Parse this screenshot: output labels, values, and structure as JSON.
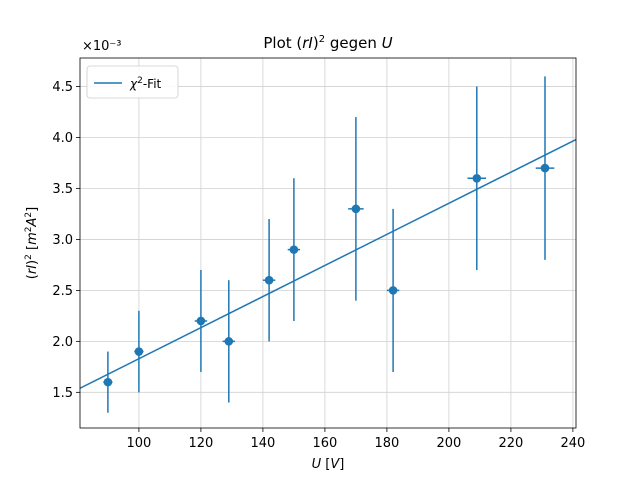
{
  "chart_data": {
    "type": "scatter",
    "title": "Plot (rI)² gegen U",
    "xlabel": "U [V]",
    "ylabel": "(rI)² [m²A²]",
    "offset_label": "×10⁻³",
    "xlim": [
      81,
      241
    ],
    "ylim": [
      1.15,
      4.78
    ],
    "xticks": [
      100,
      120,
      140,
      160,
      180,
      200,
      220,
      240
    ],
    "yticks": [
      1.5,
      2.0,
      2.5,
      3.0,
      3.5,
      4.0,
      4.5
    ],
    "grid": true,
    "legend_position": "top-left",
    "color": "#1f77b4",
    "series": [
      {
        "kind": "errorbar",
        "points": [
          {
            "x": 90,
            "y": 1.6,
            "xerr": 1.5,
            "yerr": 0.3
          },
          {
            "x": 100,
            "y": 1.9,
            "xerr": 1.5,
            "yerr": 0.4
          },
          {
            "x": 120,
            "y": 2.2,
            "xerr": 2,
            "yerr": 0.5
          },
          {
            "x": 129,
            "y": 2.0,
            "xerr": 2,
            "yerr": 0.6
          },
          {
            "x": 142,
            "y": 2.6,
            "xerr": 2,
            "yerr": 0.6
          },
          {
            "x": 150,
            "y": 2.9,
            "xerr": 2,
            "yerr": 0.7
          },
          {
            "x": 170,
            "y": 3.3,
            "xerr": 2.5,
            "yerr": 0.9
          },
          {
            "x": 182,
            "y": 2.5,
            "xerr": 2,
            "yerr": 0.8
          },
          {
            "x": 209,
            "y": 3.6,
            "xerr": 3,
            "yerr": 0.9
          },
          {
            "x": 231,
            "y": 3.7,
            "xerr": 3,
            "yerr": 0.9
          }
        ]
      },
      {
        "name": "χ²-Fit",
        "kind": "line",
        "x": [
          81,
          241
        ],
        "y": [
          1.54,
          3.98
        ]
      }
    ]
  }
}
